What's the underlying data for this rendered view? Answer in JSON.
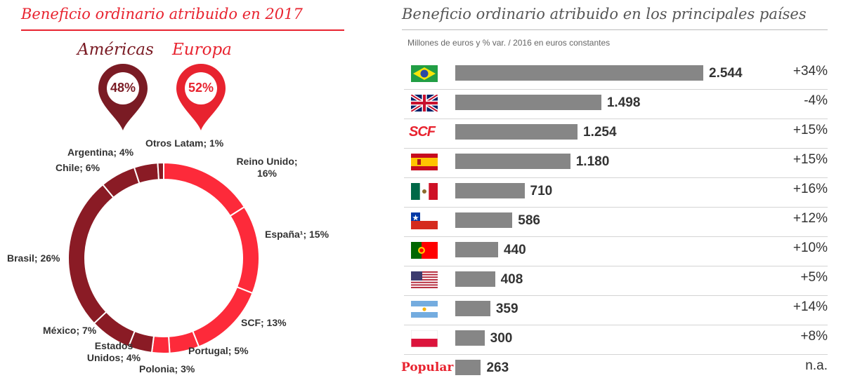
{
  "left": {
    "title": "Beneficio ordinario atribuido en 2017",
    "americas": {
      "label": "Américas",
      "pct": "48%",
      "color": "#7a1b24"
    },
    "europa": {
      "label": "Europa",
      "pct": "52%",
      "color": "#e8232f"
    }
  },
  "right": {
    "title": "Beneficio ordinario atribuido en los principales países",
    "subtitle": "Millones de euros y % var. / 2016 en euros constantes"
  },
  "chart_data": [
    {
      "type": "pie",
      "title": "Beneficio ordinario atribuido en 2017",
      "donut": true,
      "slices": [
        {
          "label": "Reino Unido; 16%",
          "value": 16,
          "group": "Europa"
        },
        {
          "label": "España¹; 15%",
          "value": 15,
          "group": "Europa"
        },
        {
          "label": "SCF; 13%",
          "value": 13,
          "group": "Europa"
        },
        {
          "label": "Portugal; 5%",
          "value": 5,
          "group": "Europa"
        },
        {
          "label": "Polonia; 3%",
          "value": 3,
          "group": "Europa"
        },
        {
          "label": "Estados Unidos; 4%",
          "value": 4,
          "group": "Américas"
        },
        {
          "label": "México; 7%",
          "value": 7,
          "group": "Américas"
        },
        {
          "label": "Brasil; 26%",
          "value": 26,
          "group": "Américas"
        },
        {
          "label": "Chile; 6%",
          "value": 6,
          "group": "Américas"
        },
        {
          "label": "Argentina; 4%",
          "value": 4,
          "group": "Américas"
        },
        {
          "label": "Otros Latam; 1%",
          "value": 1,
          "group": "Américas"
        }
      ],
      "group_colors": {
        "Europa": "#fd2a3a",
        "Américas": "#8a1b25"
      }
    },
    {
      "type": "bar",
      "orientation": "horizontal",
      "title": "Beneficio ordinario atribuido en los principales países",
      "subtitle": "Millones de euros y % var. / 2016 en euros constantes",
      "bar_color": "#868686",
      "rows": [
        {
          "icon": "brazil-flag-icon",
          "value": 2544,
          "value_label": "2.544",
          "var": "+34%"
        },
        {
          "icon": "uk-flag-icon",
          "value": 1498,
          "value_label": "1.498",
          "var": "-4%"
        },
        {
          "icon": "scf-logo-icon",
          "logo_text": "SCF",
          "value": 1254,
          "value_label": "1.254",
          "var": "+15%"
        },
        {
          "icon": "spain-flag-icon",
          "value": 1180,
          "value_label": "1.180",
          "var": "+15%"
        },
        {
          "icon": "mexico-flag-icon",
          "value": 710,
          "value_label": "710",
          "var": "+16%"
        },
        {
          "icon": "chile-flag-icon",
          "value": 586,
          "value_label": "586",
          "var": "+12%"
        },
        {
          "icon": "portugal-flag-icon",
          "value": 440,
          "value_label": "440",
          "var": "+10%"
        },
        {
          "icon": "usa-flag-icon",
          "value": 408,
          "value_label": "408",
          "var": "+5%"
        },
        {
          "icon": "argentina-flag-icon",
          "value": 359,
          "value_label": "359",
          "var": "+14%"
        },
        {
          "icon": "poland-flag-icon",
          "value": 300,
          "value_label": "300",
          "var": "+8%"
        },
        {
          "icon": "popular-logo-icon",
          "logo_text": "Popular",
          "value": 263,
          "value_label": "263",
          "var": "n.a."
        }
      ]
    }
  ]
}
